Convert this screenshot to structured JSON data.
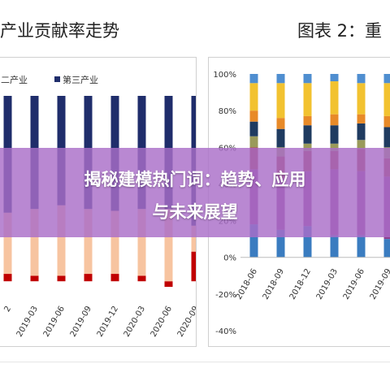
{
  "header": {
    "left_title": "产业贡献率走势",
    "right_title": "图表 2：重"
  },
  "banner": {
    "line1": "揭秘建模热门词：趋势、应用",
    "line2": "与未来展望"
  },
  "colors": {
    "first": "#c00000",
    "second": "#f7c4a0",
    "third": "#1f2d6b",
    "right_blue": "#3a7cc0",
    "right_purple": "#8e3f8e",
    "right_red": "#9e3a3a",
    "right_olive": "#9a9a5a",
    "right_navy": "#1f3b60",
    "right_orange": "#e88a28",
    "right_yellow": "#f2c230",
    "right_lightblue": "#4f8ed0"
  },
  "chart_data": [
    {
      "type": "bar",
      "stacked": true,
      "legend": [
        "二产业",
        "第三产业"
      ],
      "categories": [
        "2",
        "2019-03",
        "2019-06",
        "2019-09",
        "2019-12",
        "2020-03",
        "2020-06",
        "2020-09"
      ],
      "series": [
        {
          "name": "",
          "color": "#c00000",
          "values": [
            4,
            3,
            3,
            4,
            4,
            3,
            -3,
            16
          ]
        },
        {
          "name": "二产业",
          "color": "#f7c4a0",
          "values": [
            33,
            36,
            38,
            35,
            34,
            36,
            39,
            14
          ]
        },
        {
          "name": "第三产业",
          "color": "#1f2d6b",
          "values": [
            63,
            61,
            59,
            61,
            62,
            61,
            61,
            70
          ]
        }
      ],
      "ylim": [
        -10,
        100
      ]
    },
    {
      "type": "bar",
      "stacked": true,
      "categories": [
        "2018-06",
        "2018-09",
        "2018-12",
        "2019-03",
        "2019-06",
        "2019-09"
      ],
      "y_ticks": [
        "100%",
        "80%",
        "60%",
        "40%",
        "20%",
        "0%",
        "-20%",
        "-40%"
      ],
      "series": [
        {
          "color": "#3a7cc0",
          "values": [
            18,
            15,
            17,
            12,
            12,
            10
          ]
        },
        {
          "color": "#8e3f8e",
          "values": [
            30,
            28,
            30,
            36,
            35,
            34
          ]
        },
        {
          "color": "#9e3a3a",
          "values": [
            12,
            12,
            11,
            10,
            12,
            10
          ]
        },
        {
          "color": "#9a9a5a",
          "values": [
            6,
            5,
            4,
            4,
            5,
            6
          ]
        },
        {
          "color": "#1f3b60",
          "values": [
            8,
            10,
            10,
            10,
            9,
            11
          ]
        },
        {
          "color": "#e88a28",
          "values": [
            6,
            6,
            5,
            6,
            5,
            6
          ]
        },
        {
          "color": "#f2c230",
          "values": [
            15,
            19,
            18,
            18,
            17,
            18
          ]
        },
        {
          "color": "#4f8ed0",
          "values": [
            5,
            5,
            5,
            4,
            5,
            5
          ]
        }
      ],
      "ylim": [
        -40,
        100
      ]
    }
  ]
}
